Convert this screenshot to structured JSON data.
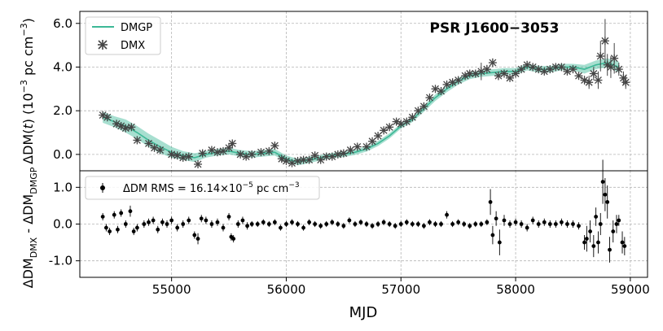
{
  "chart_data": [
    {
      "panel": "top",
      "type": "line",
      "title": "PSR J1600−3053",
      "xlabel": "",
      "ylabel_main": "ΔDM(",
      "ylabel_var": "t",
      "ylabel_tail": ") (10",
      "ylabel_exp": "−3",
      "ylabel_unit": " pc cm",
      "ylabel_exp2": "−3",
      "ylabel_close": ")",
      "xlim": [
        54200,
        59150
      ],
      "ylim": [
        -0.75,
        6.55
      ],
      "yticks": [
        0.0,
        2.0,
        4.0,
        6.0
      ],
      "ytick_labels": [
        "0.0",
        "2.0",
        "4.0",
        "6.0"
      ],
      "grid": true,
      "legend_placement": "top-left",
      "colors": {
        "dmgp": "#3cb896",
        "band": "#3cb896",
        "dmx": "#444444"
      },
      "series": [
        {
          "name": "DMGP",
          "kind": "line_with_band",
          "x": [
            54400,
            54500,
            54600,
            54700,
            54800,
            54900,
            55000,
            55100,
            55200,
            55300,
            55400,
            55500,
            55600,
            55700,
            55800,
            55900,
            56000,
            56100,
            56200,
            56300,
            56400,
            56500,
            56600,
            56700,
            56800,
            56900,
            57000,
            57100,
            57200,
            57300,
            57400,
            57500,
            57600,
            57700,
            57800,
            57900,
            58000,
            58100,
            58200,
            58300,
            58400,
            58500,
            58600,
            58700,
            58800,
            58900
          ],
          "y": [
            1.7,
            1.5,
            1.3,
            1.0,
            0.65,
            0.35,
            0.1,
            -0.05,
            -0.15,
            0.0,
            0.1,
            0.15,
            0.05,
            0.0,
            0.05,
            0.1,
            -0.2,
            -0.35,
            -0.25,
            -0.15,
            -0.05,
            0.0,
            0.1,
            0.25,
            0.5,
            0.85,
            1.3,
            1.6,
            2.1,
            2.6,
            3.0,
            3.35,
            3.6,
            3.7,
            3.75,
            3.8,
            3.8,
            4.0,
            3.9,
            3.9,
            4.0,
            4.0,
            3.9,
            4.1,
            4.2,
            4.0
          ],
          "band": [
            0.25,
            0.25,
            0.3,
            0.3,
            0.3,
            0.3,
            0.25,
            0.2,
            0.2,
            0.15,
            0.15,
            0.15,
            0.15,
            0.15,
            0.15,
            0.15,
            0.15,
            0.15,
            0.15,
            0.12,
            0.12,
            0.12,
            0.12,
            0.12,
            0.12,
            0.12,
            0.12,
            0.12,
            0.15,
            0.15,
            0.15,
            0.15,
            0.15,
            0.15,
            0.15,
            0.15,
            0.15,
            0.15,
            0.15,
            0.15,
            0.15,
            0.15,
            0.2,
            0.2,
            0.2,
            0.25
          ]
        },
        {
          "name": "DMX",
          "kind": "points",
          "x": [
            54400,
            54440,
            54520,
            54560,
            54600,
            54650,
            54700,
            54800,
            54850,
            54900,
            55000,
            55050,
            55100,
            55150,
            55230,
            55270,
            55350,
            55400,
            55450,
            55500,
            55530,
            55600,
            55650,
            55700,
            55780,
            55850,
            55900,
            55960,
            56000,
            56050,
            56100,
            56150,
            56200,
            56250,
            56300,
            56350,
            56400,
            56450,
            56500,
            56560,
            56620,
            56700,
            56750,
            56800,
            56850,
            56900,
            56960,
            57000,
            57050,
            57100,
            57150,
            57200,
            57250,
            57300,
            57350,
            57400,
            57450,
            57500,
            57560,
            57600,
            57650,
            57700,
            57750,
            57800,
            57850,
            57900,
            57950,
            58000,
            58050,
            58100,
            58150,
            58200,
            58250,
            58300,
            58350,
            58400,
            58450,
            58500,
            58550,
            58600,
            58640,
            58680,
            58720,
            58740,
            58780,
            58800,
            58830,
            58860,
            58900,
            58940,
            58960
          ],
          "y": [
            1.8,
            1.7,
            1.4,
            1.3,
            1.2,
            1.25,
            0.65,
            0.5,
            0.3,
            0.2,
            0.0,
            -0.05,
            -0.15,
            -0.1,
            -0.45,
            0.05,
            0.2,
            0.1,
            0.15,
            0.3,
            0.5,
            0.0,
            -0.1,
            0.0,
            0.1,
            0.15,
            0.4,
            -0.2,
            -0.3,
            -0.4,
            -0.3,
            -0.25,
            -0.25,
            -0.05,
            -0.25,
            -0.1,
            -0.1,
            0.0,
            0.05,
            0.2,
            0.35,
            0.35,
            0.6,
            0.85,
            1.1,
            1.25,
            1.5,
            1.4,
            1.5,
            1.7,
            2.0,
            2.2,
            2.6,
            3.0,
            2.9,
            3.2,
            3.3,
            3.4,
            3.6,
            3.7,
            3.7,
            3.8,
            3.9,
            4.2,
            3.6,
            3.7,
            3.5,
            3.7,
            3.9,
            4.1,
            4.0,
            3.9,
            3.8,
            3.9,
            4.0,
            4.0,
            3.8,
            3.9,
            3.6,
            3.4,
            3.3,
            3.7,
            3.4,
            4.5,
            5.2,
            4.1,
            4.0,
            4.4,
            3.9,
            3.5,
            3.3
          ],
          "yerr": [
            0.1,
            0.1,
            0.1,
            0.1,
            0.1,
            0.1,
            0.1,
            0.1,
            0.1,
            0.1,
            0.1,
            0.1,
            0.1,
            0.1,
            0.1,
            0.1,
            0.1,
            0.1,
            0.1,
            0.1,
            0.1,
            0.1,
            0.1,
            0.1,
            0.1,
            0.1,
            0.1,
            0.1,
            0.1,
            0.1,
            0.1,
            0.1,
            0.1,
            0.1,
            0.1,
            0.1,
            0.1,
            0.1,
            0.1,
            0.1,
            0.1,
            0.1,
            0.1,
            0.1,
            0.1,
            0.1,
            0.1,
            0.1,
            0.1,
            0.1,
            0.1,
            0.1,
            0.1,
            0.1,
            0.1,
            0.1,
            0.1,
            0.1,
            0.1,
            0.1,
            0.1,
            0.4,
            0.2,
            0.2,
            0.2,
            0.1,
            0.1,
            0.1,
            0.1,
            0.1,
            0.1,
            0.1,
            0.1,
            0.1,
            0.1,
            0.1,
            0.1,
            0.1,
            0.15,
            0.2,
            0.3,
            0.3,
            0.4,
            0.7,
            1.0,
            0.5,
            0.5,
            0.7,
            0.3,
            0.3,
            0.3
          ]
        }
      ]
    },
    {
      "panel": "bottom",
      "type": "scatter",
      "xlabel": "MJD",
      "ylabel_main": "ΔDM",
      "ylabel_sub1": "DMX",
      "ylabel_mid": " - ΔDM",
      "ylabel_sub2": "DMGP",
      "xlim": [
        54200,
        59150
      ],
      "ylim": [
        -1.45,
        1.45
      ],
      "xticks": [
        55000,
        56000,
        57000,
        58000,
        59000
      ],
      "xtick_labels": [
        "55000",
        "56000",
        "57000",
        "58000",
        "59000"
      ],
      "yticks": [
        -1.0,
        0.0,
        1.0
      ],
      "ytick_labels": [
        "-1.0",
        "0.0",
        "1.0"
      ],
      "grid": true,
      "legend_placement": "top-left",
      "colors": {
        "residual": "#000000"
      },
      "series": [
        {
          "name": "ΔDM RMS = 16.14×10",
          "name_exp": "−5",
          "name_unit": " pc cm",
          "name_exp2": "−3",
          "x": [
            54400,
            54430,
            54460,
            54500,
            54530,
            54560,
            54600,
            54640,
            54670,
            54700,
            54760,
            54800,
            54840,
            54880,
            54920,
            54960,
            55000,
            55050,
            55100,
            55150,
            55200,
            55230,
            55260,
            55300,
            55350,
            55400,
            55450,
            55500,
            55520,
            55540,
            55580,
            55620,
            55660,
            55700,
            55750,
            55800,
            55850,
            55900,
            55950,
            56000,
            56050,
            56100,
            56150,
            56200,
            56250,
            56300,
            56350,
            56400,
            56450,
            56500,
            56550,
            56600,
            56650,
            56700,
            56750,
            56800,
            56850,
            56900,
            56950,
            57000,
            57050,
            57100,
            57150,
            57200,
            57250,
            57300,
            57350,
            57400,
            57450,
            57500,
            57550,
            57600,
            57650,
            57700,
            57750,
            57780,
            57800,
            57830,
            57860,
            57900,
            57950,
            58000,
            58050,
            58100,
            58150,
            58200,
            58250,
            58300,
            58350,
            58400,
            58450,
            58500,
            58550,
            58600,
            58620,
            58650,
            58680,
            58700,
            58720,
            58740,
            58760,
            58780,
            58800,
            58820,
            58850,
            58880,
            58900,
            58930,
            58950
          ],
          "y": [
            0.2,
            -0.1,
            -0.2,
            0.25,
            -0.15,
            0.3,
            0.0,
            0.35,
            -0.2,
            -0.1,
            0.0,
            0.05,
            0.1,
            -0.15,
            0.05,
            0.0,
            0.1,
            -0.1,
            0.0,
            0.1,
            -0.3,
            -0.4,
            0.15,
            0.1,
            0.0,
            0.05,
            -0.1,
            0.2,
            -0.35,
            -0.4,
            0.0,
            0.1,
            -0.05,
            0.0,
            0.0,
            0.05,
            0.0,
            0.05,
            -0.1,
            0.0,
            0.05,
            0.0,
            -0.1,
            0.05,
            0.0,
            -0.05,
            0.0,
            0.05,
            0.0,
            -0.05,
            0.1,
            0.0,
            0.05,
            0.0,
            -0.05,
            0.0,
            0.05,
            0.0,
            -0.05,
            0.0,
            0.05,
            0.0,
            0.0,
            -0.05,
            0.05,
            0.0,
            0.0,
            0.25,
            0.0,
            0.05,
            0.0,
            -0.05,
            0.0,
            0.0,
            0.05,
            0.6,
            -0.3,
            0.15,
            -0.5,
            0.1,
            0.0,
            0.05,
            0.0,
            -0.1,
            0.1,
            0.0,
            0.05,
            0.0,
            0.0,
            0.05,
            0.0,
            0.0,
            -0.05,
            -0.5,
            -0.4,
            -0.2,
            -0.6,
            0.2,
            -0.5,
            0.0,
            1.15,
            0.8,
            0.6,
            -0.7,
            -0.2,
            0.0,
            0.1,
            -0.5,
            -0.6
          ],
          "yerr": [
            0.1,
            0.1,
            0.1,
            0.1,
            0.1,
            0.1,
            0.1,
            0.15,
            0.1,
            0.1,
            0.1,
            0.1,
            0.1,
            0.1,
            0.1,
            0.1,
            0.1,
            0.1,
            0.1,
            0.1,
            0.1,
            0.15,
            0.1,
            0.1,
            0.1,
            0.1,
            0.1,
            0.1,
            0.1,
            0.1,
            0.1,
            0.1,
            0.1,
            0.08,
            0.08,
            0.08,
            0.08,
            0.08,
            0.08,
            0.08,
            0.08,
            0.08,
            0.08,
            0.08,
            0.08,
            0.08,
            0.08,
            0.08,
            0.08,
            0.08,
            0.08,
            0.08,
            0.08,
            0.08,
            0.08,
            0.08,
            0.08,
            0.08,
            0.08,
            0.08,
            0.08,
            0.08,
            0.08,
            0.08,
            0.08,
            0.08,
            0.08,
            0.1,
            0.08,
            0.08,
            0.08,
            0.08,
            0.08,
            0.08,
            0.08,
            0.35,
            0.25,
            0.2,
            0.35,
            0.15,
            0.1,
            0.1,
            0.1,
            0.1,
            0.1,
            0.1,
            0.1,
            0.1,
            0.1,
            0.1,
            0.1,
            0.1,
            0.1,
            0.2,
            0.35,
            0.3,
            0.3,
            0.25,
            0.3,
            0.3,
            0.6,
            0.45,
            0.45,
            0.35,
            0.3,
            0.25,
            0.15,
            0.3,
            0.25
          ]
        }
      ]
    }
  ]
}
